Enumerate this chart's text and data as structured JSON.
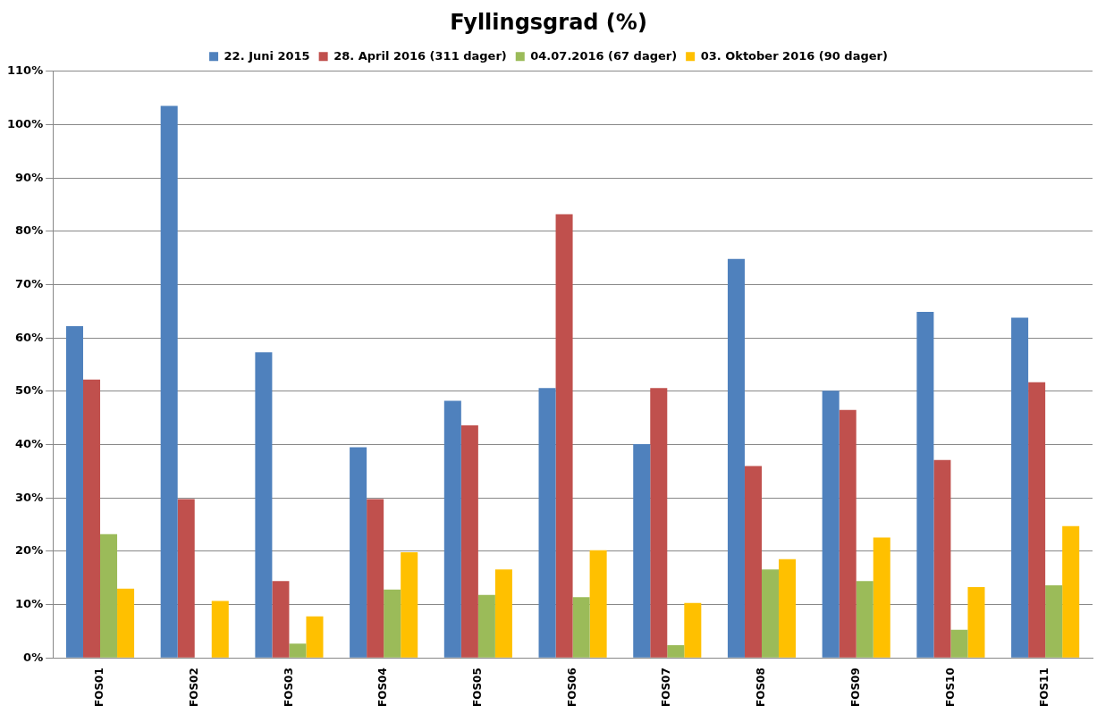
{
  "chart_data": {
    "type": "bar",
    "title": "Fyllingsgrad (%)",
    "categories": [
      "FOS01",
      "FOS02",
      "FOS03",
      "FOS04",
      "FOS05",
      "FOS06",
      "FOS07",
      "FOS08",
      "FOS09",
      "FOS10",
      "FOS11"
    ],
    "series": [
      {
        "name": "22. Juni 2015",
        "color": "#4f81bd",
        "values": [
          62.2,
          103.5,
          57.3,
          39.5,
          48.2,
          50.6,
          40.1,
          74.8,
          50.1,
          64.9,
          63.8
        ]
      },
      {
        "name": "28. April 2016 (311 dager)",
        "color": "#c0504d",
        "values": [
          52.2,
          29.8,
          14.4,
          29.8,
          43.6,
          83.2,
          50.6,
          36.0,
          46.5,
          37.1,
          51.7
        ]
      },
      {
        "name": "04.07.2016 (67 dager)",
        "color": "#9bbb59",
        "values": [
          23.2,
          0,
          2.7,
          12.8,
          11.8,
          11.4,
          2.4,
          16.6,
          14.4,
          5.3,
          13.6
        ]
      },
      {
        "name": "03. Oktober 2016 (90 dager)",
        "color": "#ffc000",
        "values": [
          13.0,
          10.7,
          7.8,
          19.8,
          16.6,
          20.2,
          10.3,
          18.5,
          22.6,
          13.3,
          24.7
        ]
      }
    ],
    "ylim": [
      0,
      110
    ],
    "yticks": [
      {
        "value": 0,
        "label": "0%"
      },
      {
        "value": 10,
        "label": "10%"
      },
      {
        "value": 20,
        "label": "20%"
      },
      {
        "value": 30,
        "label": "30%"
      },
      {
        "value": 40,
        "label": "40%"
      },
      {
        "value": 50,
        "label": "50%"
      },
      {
        "value": 60,
        "label": "60%"
      },
      {
        "value": 70,
        "label": "70%"
      },
      {
        "value": 80,
        "label": "80%"
      },
      {
        "value": 90,
        "label": "90%"
      },
      {
        "value": 100,
        "label": "100%"
      },
      {
        "value": 110,
        "label": "110%"
      }
    ],
    "grid": "y",
    "legend": "top"
  }
}
